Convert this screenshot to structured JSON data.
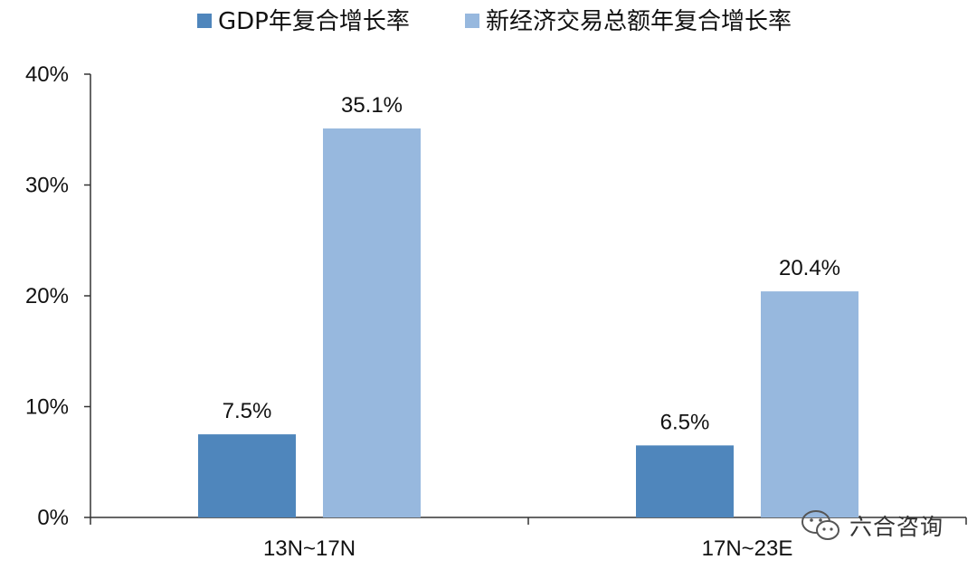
{
  "colors": {
    "gdp": "#4f86bc",
    "new_economy": "#97b8de",
    "axis": "#333333",
    "text": "#111111"
  },
  "watermark": {
    "text": "六合咨询",
    "icon": "wechat-icon"
  },
  "chart_data": {
    "type": "bar",
    "categories": [
      "13N~17N",
      "17N~23E"
    ],
    "series": [
      {
        "name": "GDP年复合增长率",
        "values": [
          7.5,
          6.5
        ],
        "labels": [
          "7.5%",
          "6.5%"
        ]
      },
      {
        "name": "新经济交易总额年复合增长率",
        "values": [
          35.1,
          20.4
        ],
        "labels": [
          "35.1%",
          "20.4%"
        ]
      }
    ],
    "ylim": [
      0,
      40
    ],
    "yticks": [
      0,
      10,
      20,
      30,
      40
    ],
    "ytick_labels": [
      "0%",
      "10%",
      "20%",
      "30%",
      "40%"
    ],
    "legend_position": "top",
    "grid": false
  }
}
